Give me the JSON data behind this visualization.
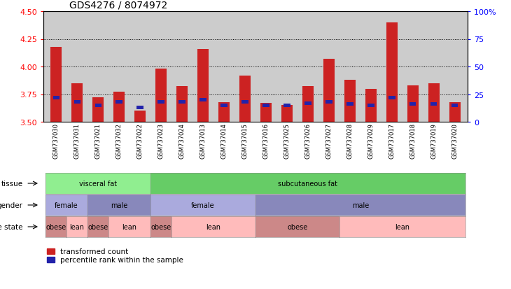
{
  "title": "GDS4276 / 8074972",
  "samples": [
    "GSM737030",
    "GSM737031",
    "GSM737021",
    "GSM737032",
    "GSM737022",
    "GSM737023",
    "GSM737024",
    "GSM737013",
    "GSM737014",
    "GSM737015",
    "GSM737016",
    "GSM737025",
    "GSM737026",
    "GSM737027",
    "GSM737028",
    "GSM737029",
    "GSM737017",
    "GSM737018",
    "GSM737019",
    "GSM737020"
  ],
  "red_values": [
    4.18,
    3.85,
    3.72,
    3.77,
    3.6,
    3.98,
    3.82,
    4.16,
    3.68,
    3.92,
    3.67,
    3.65,
    3.82,
    4.07,
    3.88,
    3.8,
    4.4,
    3.83,
    3.85,
    3.68
  ],
  "blue_values": [
    3.72,
    3.68,
    3.65,
    3.68,
    3.63,
    3.68,
    3.68,
    3.7,
    3.65,
    3.68,
    3.65,
    3.65,
    3.67,
    3.68,
    3.66,
    3.65,
    3.72,
    3.66,
    3.66,
    3.65
  ],
  "ylim": [
    3.5,
    4.5
  ],
  "yticks_left": [
    3.5,
    3.75,
    4.0,
    4.25,
    4.5
  ],
  "yticks_right": [
    0,
    25,
    50,
    75,
    100
  ],
  "tissue_groups": [
    {
      "label": "visceral fat",
      "start": 0,
      "end": 5,
      "color": "#90EE90"
    },
    {
      "label": "subcutaneous fat",
      "start": 5,
      "end": 20,
      "color": "#66CC66"
    }
  ],
  "gender_groups": [
    {
      "label": "female",
      "start": 0,
      "end": 2,
      "color": "#AAAADD"
    },
    {
      "label": "male",
      "start": 2,
      "end": 5,
      "color": "#8888BB"
    },
    {
      "label": "female",
      "start": 5,
      "end": 10,
      "color": "#AAAADD"
    },
    {
      "label": "male",
      "start": 10,
      "end": 20,
      "color": "#8888BB"
    }
  ],
  "disease_groups": [
    {
      "label": "obese",
      "start": 0,
      "end": 1,
      "color": "#CC8888"
    },
    {
      "label": "lean",
      "start": 1,
      "end": 2,
      "color": "#FFBBBB"
    },
    {
      "label": "obese",
      "start": 2,
      "end": 3,
      "color": "#CC8888"
    },
    {
      "label": "lean",
      "start": 3,
      "end": 5,
      "color": "#FFBBBB"
    },
    {
      "label": "obese",
      "start": 5,
      "end": 6,
      "color": "#CC8888"
    },
    {
      "label": "lean",
      "start": 6,
      "end": 10,
      "color": "#FFBBBB"
    },
    {
      "label": "obese",
      "start": 10,
      "end": 14,
      "color": "#CC8888"
    },
    {
      "label": "lean",
      "start": 14,
      "end": 20,
      "color": "#FFBBBB"
    }
  ],
  "red_color": "#CC2222",
  "blue_color": "#2222AA",
  "background_color": "#CCCCCC",
  "legend_red": "transformed count",
  "legend_blue": "percentile rank within the sample"
}
